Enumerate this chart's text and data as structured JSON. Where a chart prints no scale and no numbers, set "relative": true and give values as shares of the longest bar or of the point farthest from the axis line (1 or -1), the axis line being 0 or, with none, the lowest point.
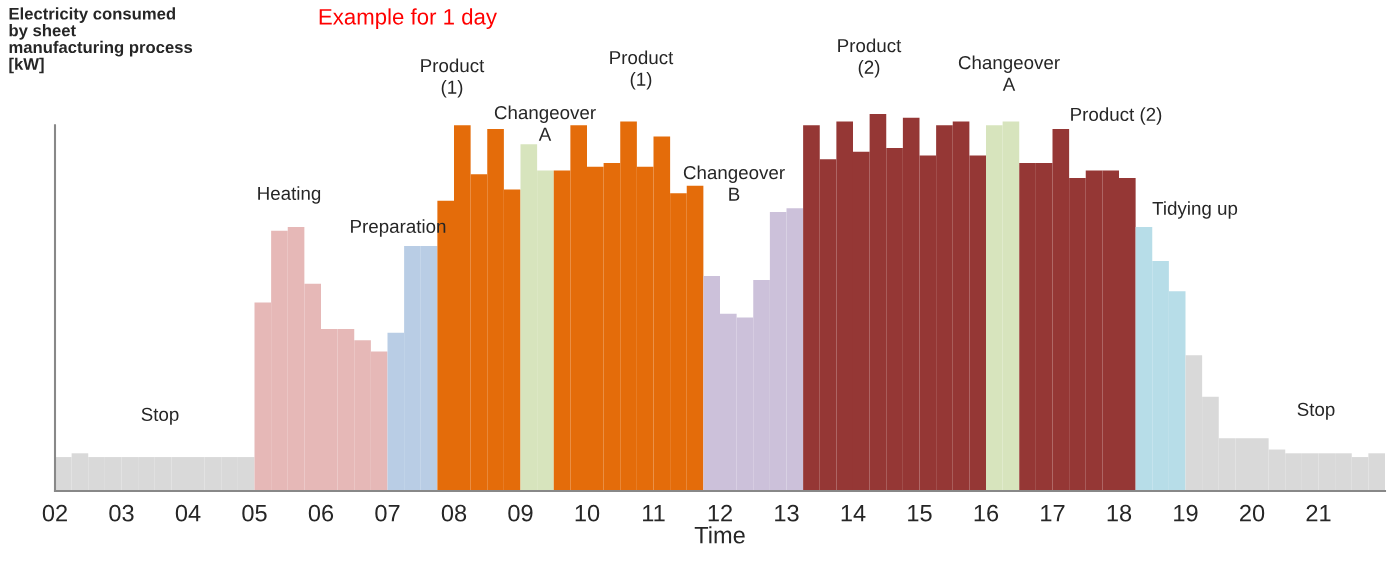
{
  "chart_data": {
    "type": "bar",
    "title": "Example for 1 day",
    "ylabel": "Electricity consumed\nby sheet\nmanufacturing process\n[kW]",
    "xlabel": "Time",
    "relative": true,
    "x": [
      2.125,
      2.375,
      2.625,
      2.875,
      3.125,
      3.375,
      3.625,
      3.875,
      4.125,
      4.375,
      4.625,
      4.875,
      5.125,
      5.375,
      5.625,
      5.875,
      6.125,
      6.375,
      6.625,
      6.875,
      7.125,
      7.375,
      7.625,
      7.875,
      8.125,
      8.375,
      8.625,
      8.875,
      9.125,
      9.375,
      9.625,
      9.875,
      10.125,
      10.375,
      10.625,
      10.875,
      11.125,
      11.375,
      11.625,
      11.875,
      12.125,
      12.375,
      12.625,
      12.875,
      13.125,
      13.375,
      13.625,
      13.875,
      14.125,
      14.375,
      14.625,
      14.875,
      15.125,
      15.375,
      15.625,
      15.875,
      16.125,
      16.375,
      16.625,
      16.875,
      17.125,
      17.375,
      17.625,
      17.875,
      18.125,
      18.375,
      18.625,
      18.875,
      19.125,
      19.375,
      19.625,
      19.875,
      20.125,
      20.375,
      20.625,
      20.875,
      21.125,
      21.375,
      21.625,
      21.875
    ],
    "values": [
      0.09,
      0.1,
      0.09,
      0.09,
      0.09,
      0.09,
      0.09,
      0.09,
      0.09,
      0.09,
      0.09,
      0.09,
      0.5,
      0.69,
      0.7,
      0.55,
      0.43,
      0.43,
      0.4,
      0.37,
      0.42,
      0.65,
      0.65,
      0.77,
      0.97,
      0.84,
      0.96,
      0.8,
      0.92,
      0.85,
      0.85,
      0.97,
      0.86,
      0.87,
      0.98,
      0.86,
      0.94,
      0.79,
      0.81,
      0.57,
      0.47,
      0.46,
      0.56,
      0.74,
      0.75,
      0.97,
      0.88,
      0.98,
      0.9,
      1.0,
      0.91,
      0.99,
      0.89,
      0.97,
      0.98,
      0.89,
      0.97,
      0.98,
      0.87,
      0.87,
      0.96,
      0.83,
      0.85,
      0.85,
      0.83,
      0.7,
      0.61,
      0.53,
      0.36,
      0.25,
      0.14,
      0.14,
      0.14,
      0.11,
      0.1,
      0.1,
      0.1,
      0.1,
      0.09,
      0.1
    ],
    "colors": [
      "#d9d9d9",
      "#d9d9d9",
      "#d9d9d9",
      "#d9d9d9",
      "#d9d9d9",
      "#d9d9d9",
      "#d9d9d9",
      "#d9d9d9",
      "#d9d9d9",
      "#d9d9d9",
      "#d9d9d9",
      "#d9d9d9",
      "#e6b8b7",
      "#e6b8b7",
      "#e6b8b7",
      "#e6b8b7",
      "#e6b8b7",
      "#e6b8b7",
      "#e6b8b7",
      "#e6b8b7",
      "#b9cde5",
      "#b9cde5",
      "#b9cde5",
      "#e46c0a",
      "#e46c0a",
      "#e46c0a",
      "#e46c0a",
      "#e46c0a",
      "#d7e4bd",
      "#d7e4bd",
      "#e46c0a",
      "#e46c0a",
      "#e46c0a",
      "#e46c0a",
      "#e46c0a",
      "#e46c0a",
      "#e46c0a",
      "#e46c0a",
      "#e46c0a",
      "#ccc1da",
      "#ccc1da",
      "#ccc1da",
      "#ccc1da",
      "#ccc1da",
      "#ccc1da",
      "#953735",
      "#953735",
      "#953735",
      "#953735",
      "#953735",
      "#953735",
      "#953735",
      "#953735",
      "#953735",
      "#953735",
      "#953735",
      "#d7e4bd",
      "#d7e4bd",
      "#953735",
      "#953735",
      "#953735",
      "#953735",
      "#953735",
      "#953735",
      "#953735",
      "#b7dde8",
      "#b7dde8",
      "#b7dde8",
      "#d9d9d9",
      "#d9d9d9",
      "#d9d9d9",
      "#d9d9d9",
      "#d9d9d9",
      "#d9d9d9",
      "#d9d9d9",
      "#d9d9d9",
      "#d9d9d9",
      "#d9d9d9",
      "#d9d9d9",
      "#d9d9d9"
    ],
    "xlim": [
      2,
      22
    ],
    "xticks": [
      {
        "value": 2,
        "label": "02"
      },
      {
        "value": 3,
        "label": "03"
      },
      {
        "value": 4,
        "label": "04"
      },
      {
        "value": 5,
        "label": "05"
      },
      {
        "value": 6,
        "label": "06"
      },
      {
        "value": 7,
        "label": "07"
      },
      {
        "value": 8,
        "label": "08"
      },
      {
        "value": 9,
        "label": "09"
      },
      {
        "value": 10,
        "label": "10"
      },
      {
        "value": 11,
        "label": "11"
      },
      {
        "value": 12,
        "label": "12"
      },
      {
        "value": 13,
        "label": "13"
      },
      {
        "value": 14,
        "label": "14"
      },
      {
        "value": 15,
        "label": "15"
      },
      {
        "value": 16,
        "label": "16"
      },
      {
        "value": 17,
        "label": "17"
      },
      {
        "value": 18,
        "label": "18"
      },
      {
        "value": 19,
        "label": "19"
      },
      {
        "value": 20,
        "label": "20"
      },
      {
        "value": 21,
        "label": "21"
      }
    ],
    "tick_labels": "x",
    "annotations": [
      "Stop",
      "Heating",
      "Preparation",
      "Product\n(1)",
      "Changeover\nA",
      "Product\n(1)",
      "Changeover\nB",
      "Product\n(2)",
      "Changeover\nA",
      "Product (2)",
      "Tidying up",
      "Stop"
    ]
  }
}
